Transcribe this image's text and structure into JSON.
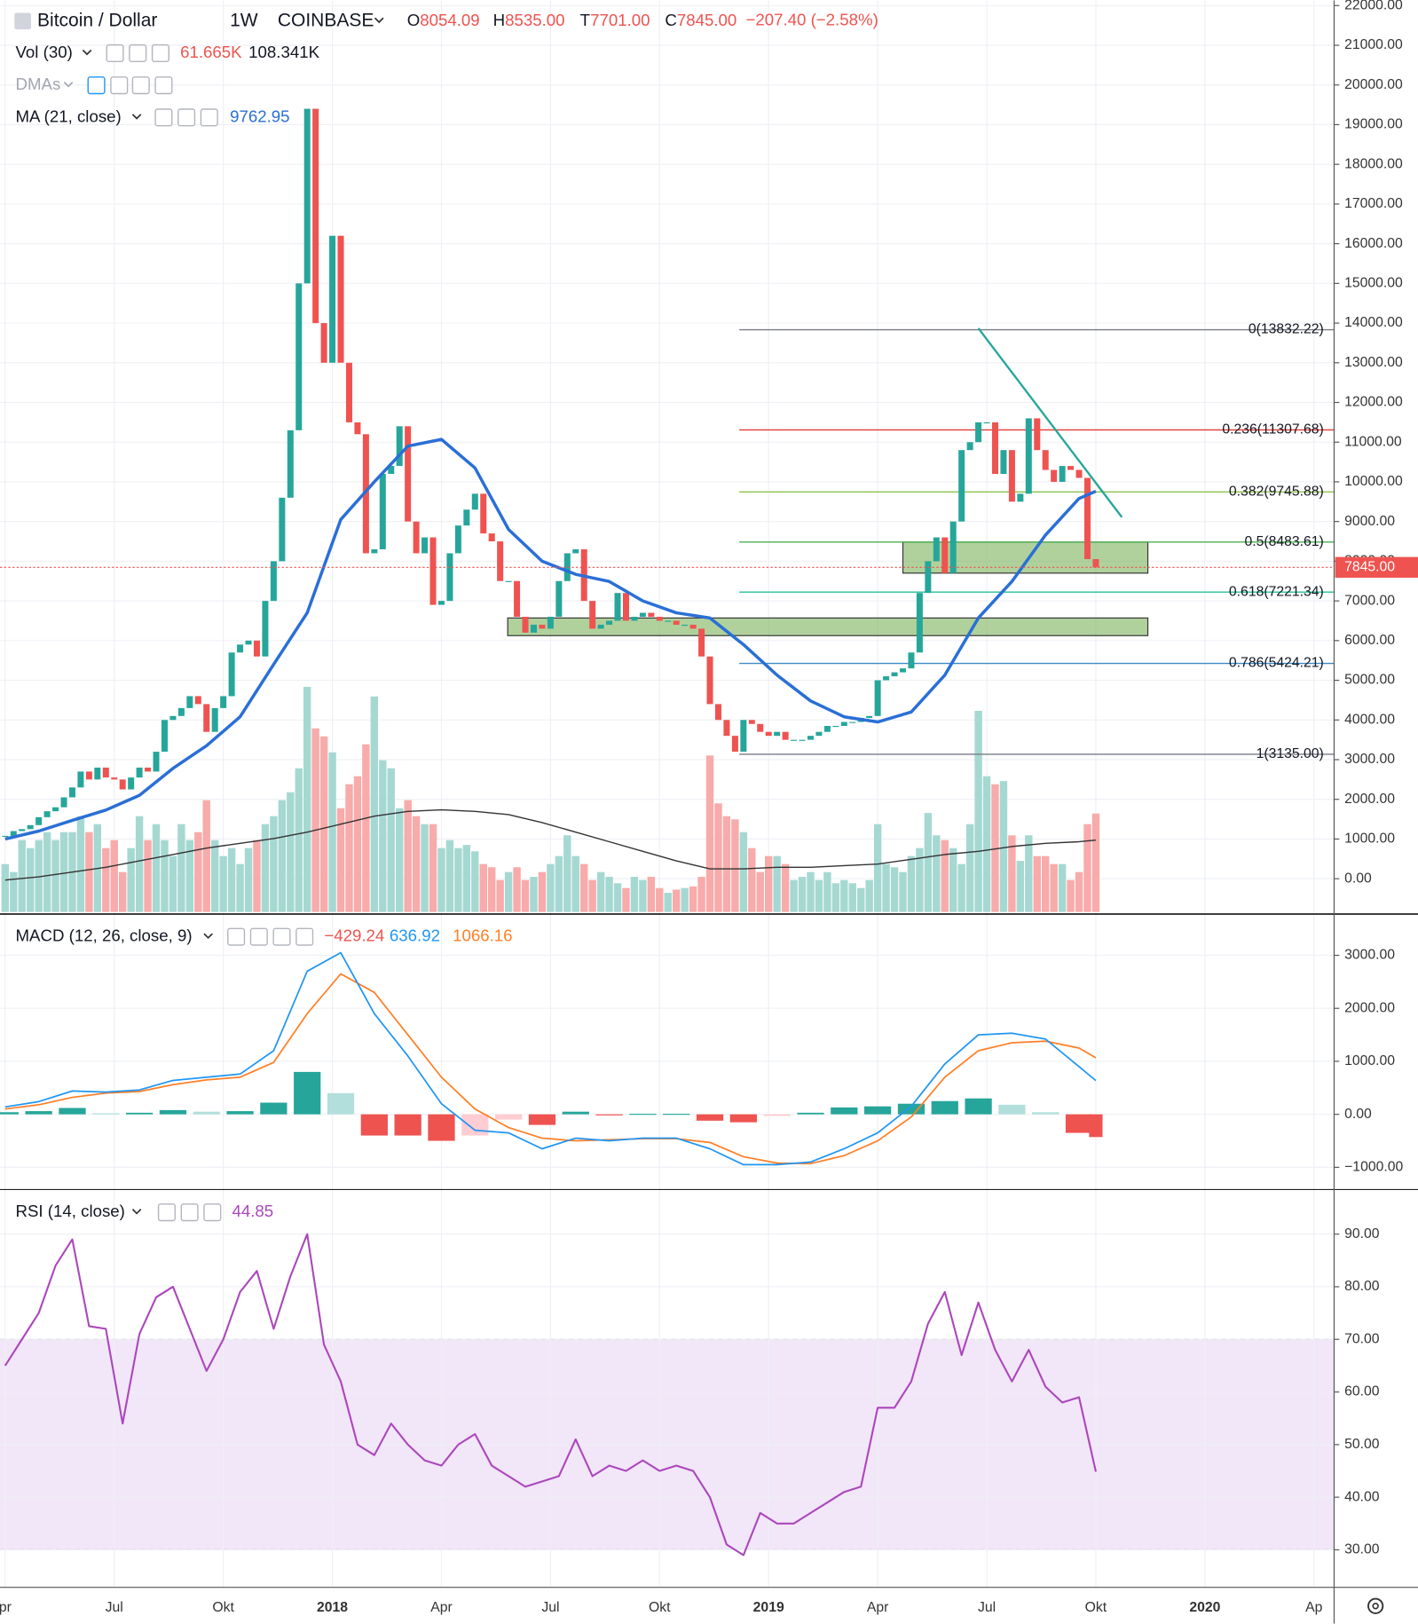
{
  "chart_data": [
    {
      "type": "candlestick",
      "title": "Bitcoin / Dollar",
      "interval": "1W",
      "exchange": "COINBASE",
      "quote": [
        "O8054.09",
        "H8535.00",
        "T7701.00",
        "C7845.00"
      ],
      "change": "−207.40 (−2.58%)",
      "up_color": "#26a69a",
      "down_color": "#ef5350",
      "x": [
        0,
        1,
        2,
        3,
        4,
        5,
        6,
        7,
        8,
        9,
        10,
        11,
        12,
        13,
        14,
        15,
        16,
        17,
        18,
        19,
        20,
        21,
        22,
        23,
        24,
        25,
        26,
        27,
        28,
        29,
        30,
        31,
        32,
        33,
        34,
        35,
        36,
        37,
        38,
        39,
        40,
        41,
        42,
        43,
        44,
        45,
        46,
        47,
        48,
        49,
        50,
        51,
        52,
        53,
        54,
        55,
        56,
        57,
        58,
        59,
        60,
        61,
        62,
        63,
        64,
        65,
        66,
        67,
        68,
        69,
        70,
        71,
        72,
        73,
        74,
        75,
        76,
        77,
        78,
        79,
        80,
        81,
        82,
        83,
        84,
        85,
        86,
        87,
        88,
        89,
        90,
        91,
        92,
        93,
        94,
        95,
        96,
        97,
        98,
        99,
        100,
        101,
        102,
        103,
        104,
        105,
        106,
        107,
        108,
        109,
        110,
        111,
        112,
        113,
        114,
        115,
        116,
        117,
        118,
        119,
        120,
        121,
        122,
        123,
        124,
        125,
        126,
        127,
        128,
        129,
        130
      ],
      "values": [
        1080,
        1200,
        1250,
        1350,
        1550,
        1700,
        1800,
        2050,
        2300,
        2700,
        2500,
        2800,
        2550,
        2500,
        2250,
        2550,
        2800,
        2700,
        3200,
        4000,
        4100,
        4300,
        4600,
        4400,
        3700,
        4300,
        4600,
        5700,
        5900,
        6000,
        5600,
        7000,
        8000,
        9600,
        11300,
        15000,
        19400,
        14000,
        13000,
        16200,
        13000,
        11500,
        11200,
        8200,
        8300,
        10200,
        10400,
        11400,
        9000,
        8200,
        8600,
        6900,
        7000,
        8200,
        8900,
        9300,
        9700,
        8700,
        8500,
        7500,
        7500,
        6600,
        6200,
        6400,
        6300,
        6600,
        7500,
        8200,
        8300,
        7000,
        6300,
        6400,
        6500,
        7200,
        6500,
        6600,
        6700,
        6600,
        6500,
        6500,
        6400,
        6400,
        6300,
        5600,
        4400,
        4000,
        3600,
        3200,
        4000,
        3900,
        3700,
        3600,
        3700,
        3500,
        3500,
        3500,
        3600,
        3700,
        3850,
        3850,
        3950,
        3950,
        4050,
        4100,
        5000,
        5100,
        5200,
        5300,
        5700,
        7200,
        8000,
        8600,
        7700,
        9000,
        10800,
        11000,
        11500,
        11500,
        10200,
        10800,
        9500,
        9700,
        11600,
        10800,
        10300,
        10000,
        10400,
        10300,
        10100,
        8052.4,
        7845
      ],
      "xlim": [
        -0.617,
        158.4
      ],
      "xticks": [
        {
          "value": 0,
          "label": "pr"
        },
        {
          "value": 13,
          "label": "Jul"
        },
        {
          "value": 26,
          "label": "Okt"
        },
        {
          "value": 39,
          "label": "2018"
        },
        {
          "value": 52,
          "label": "Apr"
        },
        {
          "value": 65,
          "label": "Jul"
        },
        {
          "value": 78,
          "label": "Okt"
        },
        {
          "value": 91,
          "label": "2019"
        },
        {
          "value": 104,
          "label": "Apr"
        },
        {
          "value": 117,
          "label": "Jul"
        },
        {
          "value": 130,
          "label": "Okt"
        },
        {
          "value": 143,
          "label": "2020"
        },
        {
          "value": 156,
          "label": "Ap"
        }
      ],
      "ylim": [
        -890,
        22131
      ],
      "yticks": [
        {
          "value": 0,
          "label": "0.00"
        },
        {
          "value": 1000,
          "label": "1000.00"
        },
        {
          "value": 2000,
          "label": "2000.00"
        },
        {
          "value": 3000,
          "label": "3000.00"
        },
        {
          "value": 4000,
          "label": "4000.00"
        },
        {
          "value": 5000,
          "label": "5000.00"
        },
        {
          "value": 6000,
          "label": "6000.00"
        },
        {
          "value": 7000,
          "label": "7000.00"
        },
        {
          "value": 8000,
          "label": "8000.00"
        },
        {
          "value": 9000,
          "label": "9000.00"
        },
        {
          "value": 10000,
          "label": "10000.00"
        },
        {
          "value": 11000,
          "label": "11000.00"
        },
        {
          "value": 12000,
          "label": "12000.00"
        },
        {
          "value": 13000,
          "label": "13000.00"
        },
        {
          "value": 14000,
          "label": "14000.00"
        },
        {
          "value": 15000,
          "label": "15000.00"
        },
        {
          "value": 16000,
          "label": "16000.00"
        },
        {
          "value": 17000,
          "label": "17000.00"
        },
        {
          "value": 18000,
          "label": "18000.00"
        },
        {
          "value": 19000,
          "label": "19000.00"
        },
        {
          "value": 20000,
          "label": "20000.00"
        },
        {
          "value": 21000,
          "label": "21000.00"
        },
        {
          "value": 22000,
          "label": "22000.00"
        }
      ],
      "grid": true,
      "last_price": {
        "value": 7845,
        "label": "7845.00",
        "color": "#ef5350"
      },
      "volume": {
        "name": "Vol (30)",
        "legend": [
          "61.665K",
          "108.341K"
        ],
        "ylim": [
          0,
          571
        ],
        "up_color": "#a6d8d2",
        "down_color": "#f7abaa",
        "values": [
          30,
          25,
          45,
          40,
          45,
          50,
          45,
          50,
          50,
          60,
          50,
          55,
          40,
          45,
          25,
          40,
          60,
          45,
          55,
          45,
          35,
          55,
          45,
          50,
          70,
          45,
          35,
          40,
          30,
          40,
          45,
          55,
          60,
          70,
          75,
          90,
          141,
          115,
          110,
          100,
          65,
          80,
          85,
          105,
          135,
          95,
          90,
          65,
          70,
          60,
          55,
          55,
          40,
          45,
          40,
          42,
          38,
          30,
          28,
          20,
          25,
          28,
          20,
          22,
          25,
          30,
          35,
          48,
          35,
          30,
          20,
          25,
          22,
          18,
          15,
          22,
          20,
          22,
          15,
          12,
          14,
          15,
          16,
          22,
          98,
          68,
          60,
          58,
          50,
          40,
          25,
          35,
          35,
          30,
          20,
          22,
          25,
          20,
          25,
          18,
          20,
          18,
          15,
          20,
          55,
          30,
          28,
          25,
          35,
          40,
          62,
          48,
          45,
          40,
          30,
          55,
          126,
          85,
          80,
          82,
          48,
          32,
          48,
          35,
          35,
          30,
          30,
          20,
          25,
          55,
          61.665
        ],
        "ma": {
          "color": "#333333",
          "x": [
            0,
            4,
            8,
            12,
            16,
            20,
            24,
            28,
            32,
            36,
            40,
            44,
            48,
            52,
            56,
            60,
            64,
            68,
            72,
            76,
            80,
            84,
            88,
            92,
            96,
            100,
            104,
            108,
            112,
            116,
            120,
            124,
            128,
            130
          ],
          "values": [
            20,
            22,
            25,
            28,
            32,
            36,
            40,
            43,
            46,
            50,
            55,
            60,
            63,
            64,
            63,
            61,
            56,
            50,
            44,
            38,
            32,
            27,
            27,
            28,
            28,
            29,
            30,
            33,
            36,
            38,
            41,
            43,
            44,
            45
          ]
        }
      },
      "dmas": "DMAs",
      "ma": {
        "name": "MA (21, close)",
        "color": "#2a6fd6",
        "x": [
          0,
          4,
          8,
          12,
          16,
          20,
          24,
          28,
          32,
          36,
          40,
          44,
          48,
          52,
          56,
          60,
          64,
          68,
          72,
          76,
          80,
          84,
          88,
          92,
          96,
          100,
          104,
          108,
          112,
          116,
          120,
          124,
          128,
          130
        ],
        "values": [
          1000,
          1200,
          1470,
          1730,
          2100,
          2780,
          3350,
          4080,
          5400,
          6700,
          9050,
          10000,
          10900,
          11070,
          10350,
          8800,
          8000,
          7670,
          7490,
          7000,
          6700,
          6570,
          5900,
          5130,
          4480,
          4080,
          3950,
          4200,
          5130,
          6570,
          7490,
          8660,
          9580,
          9762.95
        ]
      },
      "fib": {
        "start": 87.5,
        "levels": [
          {
            "value": 13832.22,
            "label": "0(13832.22)",
            "color": "#787b86"
          },
          {
            "value": 11307.68,
            "label": "0.236(11307.68)",
            "color": "#e53935"
          },
          {
            "value": 9745.88,
            "label": "0.382(9745.88)",
            "color": "#8bc34a"
          },
          {
            "value": 8483.61,
            "label": "0.5(8483.61)",
            "color": "#4caf50"
          },
          {
            "value": 7221.34,
            "label": "0.618(7221.34)",
            "color": "#26c29a"
          },
          {
            "value": 5424.21,
            "label": "0.786(5424.21)",
            "color": "#3d8ac4"
          },
          {
            "value": 3135,
            "label": "1(3135.00)",
            "color": "#787b86"
          }
        ]
      },
      "zones": [
        {
          "x": [
            59.9,
            136.2
          ],
          "y": [
            6125,
            6570
          ]
        },
        {
          "x": [
            107,
            136.2
          ],
          "y": [
            7700,
            8480
          ]
        }
      ],
      "zone_color": "#7cb35a",
      "trendline": {
        "x": [
          116,
          133.1
        ],
        "y": [
          13870,
          9110
        ],
        "color": "#26a69a"
      }
    },
    {
      "type": "macd",
      "name": "MACD (12, 26, close, 9)",
      "histogram_label": "−429.24",
      "x": [
        0,
        4,
        8,
        12,
        16,
        20,
        24,
        28,
        32,
        36,
        40,
        44,
        48,
        52,
        56,
        60,
        64,
        68,
        72,
        76,
        80,
        84,
        88,
        92,
        96,
        100,
        104,
        108,
        112,
        116,
        120,
        124,
        128,
        130
      ],
      "macd": {
        "color": "#2196f3",
        "values": [
          140,
          240,
          440,
          420,
          460,
          640,
          700,
          760,
          1200,
          2700,
          3050,
          1900,
          1100,
          200,
          -300,
          -350,
          -650,
          -450,
          -500,
          -450,
          -450,
          -650,
          -950,
          -950,
          -900,
          -650,
          -350,
          150,
          950,
          1500,
          1530,
          1420,
          900,
          636.92
        ]
      },
      "signal": {
        "color": "#ff7f27",
        "values": [
          100,
          180,
          320,
          400,
          430,
          560,
          650,
          700,
          980,
          1900,
          2650,
          2300,
          1500,
          700,
          100,
          -250,
          -450,
          -500,
          -480,
          -460,
          -460,
          -530,
          -800,
          -920,
          -930,
          -780,
          -500,
          -50,
          700,
          1200,
          1350,
          1380,
          1250,
          1066.16
        ]
      },
      "histogram_colors": [
        "#26a69a",
        "#b2dfdb",
        "#ffcdd2",
        "#ef5350"
      ],
      "ylim": [
        -1420,
        3740
      ],
      "yticks": [
        {
          "value": -1000,
          "label": "−1000.00"
        },
        {
          "value": 0,
          "label": "0.00"
        },
        {
          "value": 1000,
          "label": "1000.00"
        },
        {
          "value": 2000,
          "label": "2000.00"
        },
        {
          "value": 3000,
          "label": "3000.00"
        }
      ]
    },
    {
      "type": "line",
      "name": "RSI (14, close)",
      "color": "#ab47bc",
      "x": [
        0,
        2,
        4,
        6,
        8,
        10,
        12,
        14,
        16,
        18,
        20,
        22,
        24,
        26,
        28,
        30,
        32,
        34,
        36,
        38,
        40,
        42,
        44,
        46,
        48,
        50,
        52,
        54,
        56,
        58,
        60,
        62,
        64,
        66,
        68,
        70,
        72,
        74,
        76,
        78,
        80,
        82,
        84,
        86,
        88,
        90,
        92,
        94,
        96,
        98,
        100,
        102,
        104,
        106,
        108,
        110,
        112,
        114,
        116,
        118,
        120,
        122,
        124,
        126,
        128,
        130
      ],
      "values": [
        65,
        70,
        75,
        84,
        89,
        72.5,
        72,
        54,
        71,
        78,
        80,
        72,
        64,
        70,
        79,
        83,
        72,
        82,
        90,
        69,
        62,
        50,
        48,
        54,
        50,
        47,
        46,
        50,
        52,
        46,
        44,
        42,
        43,
        44,
        51,
        44,
        46,
        45,
        47,
        45,
        46,
        45,
        40,
        31,
        29,
        37,
        35,
        35,
        37,
        39,
        41,
        42,
        57,
        57,
        62,
        73,
        79,
        67,
        77,
        68,
        62,
        68,
        61,
        58,
        59,
        44.85
      ],
      "ylim": [
        22.87,
        98.07
      ],
      "yticks": [
        {
          "value": 30,
          "label": "30.00"
        },
        {
          "value": 40,
          "label": "40.00"
        },
        {
          "value": 50,
          "label": "50.00"
        },
        {
          "value": 60,
          "label": "60.00"
        },
        {
          "value": 70,
          "label": "70.00"
        },
        {
          "value": 80,
          "label": "80.00"
        },
        {
          "value": 90,
          "label": "90.00"
        }
      ],
      "band": [
        30,
        70
      ],
      "band_color": "#ead5f5"
    }
  ]
}
